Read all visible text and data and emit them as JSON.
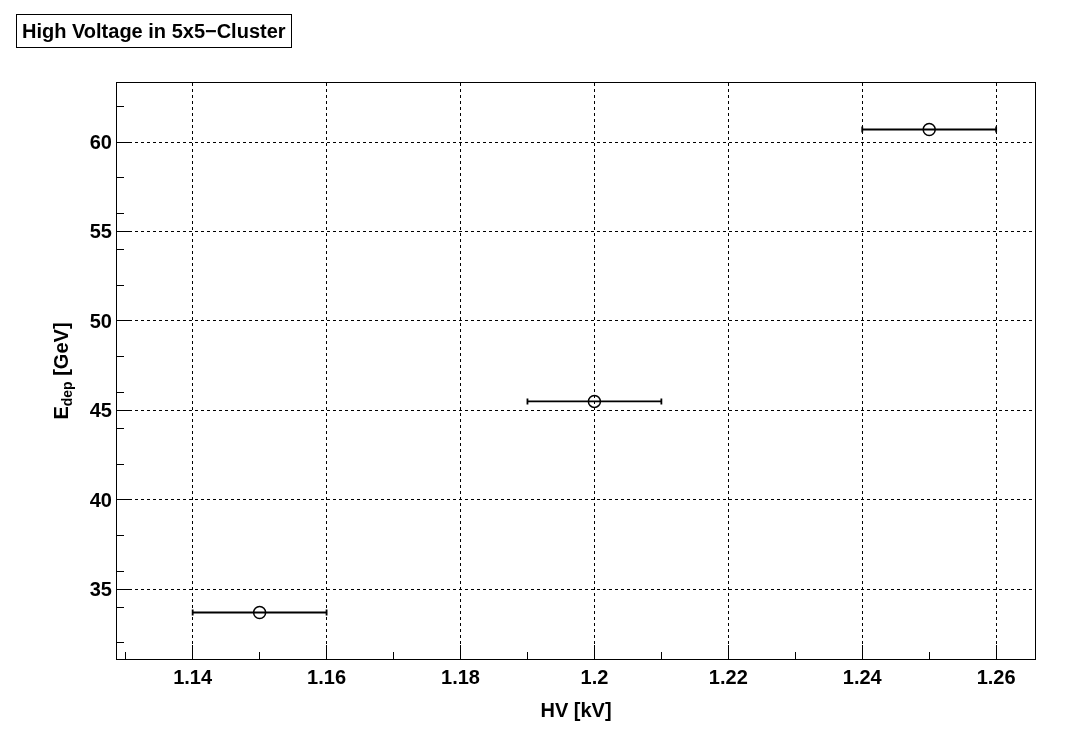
{
  "chart_data": {
    "type": "scatter",
    "title": "High Voltage in 5x5−Cluster",
    "xlabel": "HV [kV]",
    "ylabel": "E$_{dep}$ [GeV]",
    "x": [
      1.15,
      1.2,
      1.25
    ],
    "series": [
      {
        "color": "#000000",
        "values": [
          33.7,
          45.5,
          60.7
        ],
        "xerrors": [
          0.01,
          0.01,
          0.01
        ]
      }
    ],
    "xlim": [
      1.1287,
      1.2658
    ],
    "xticks": [
      1.14,
      1.16,
      1.18,
      1.2,
      1.22,
      1.24,
      1.26
    ],
    "ylim": [
      31.1,
      63.3
    ],
    "yticks": [
      35,
      40,
      45,
      50,
      55,
      60
    ],
    "grid": true,
    "marker": "circle"
  }
}
